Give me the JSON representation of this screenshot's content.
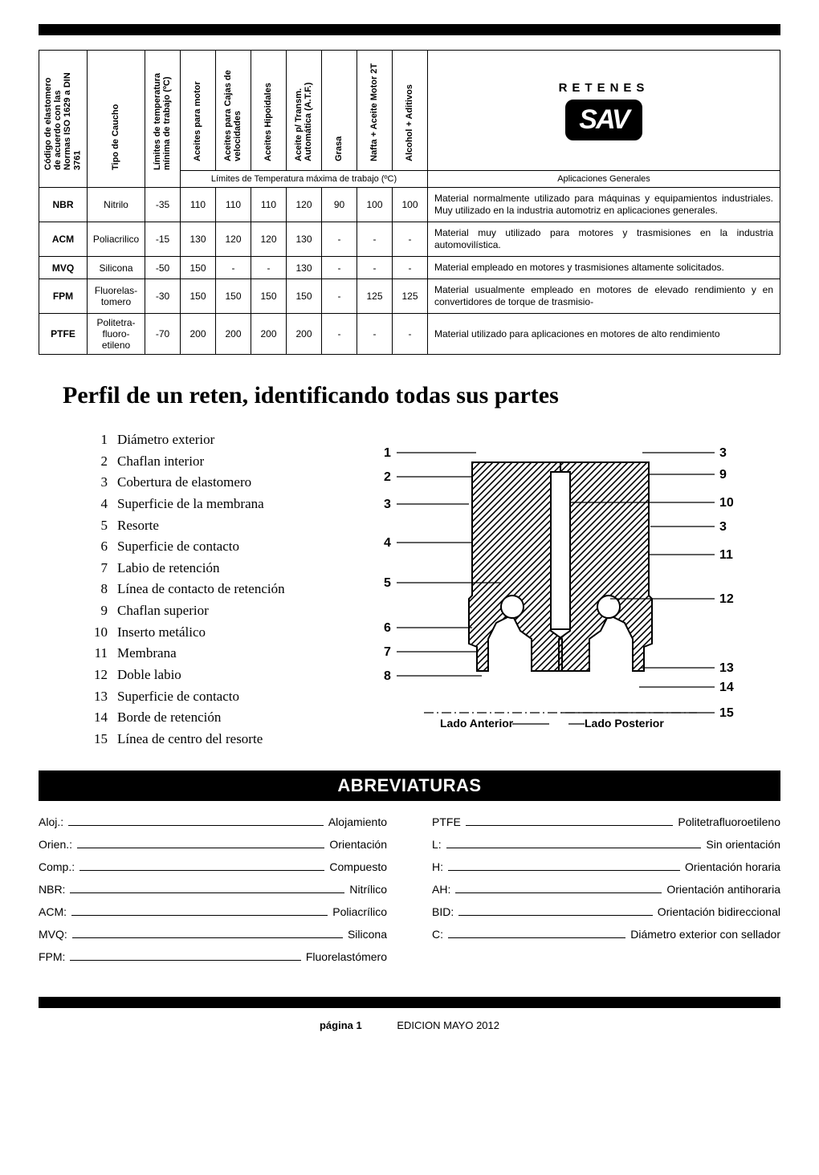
{
  "brand": {
    "title": "RETENES",
    "logo": "SAV"
  },
  "table": {
    "headers": {
      "code": "Código de elastomero de acuerdo con las Normas ISO 1629 a DIN 3761",
      "tipo": "Tipo de Caucho",
      "limites": "Límites de temperatura mínima de trabajo (ºC)",
      "c1": "Aceites para motor",
      "c2": "Aceites para Cajas de velocidades",
      "c3": "Aceites Hipoidales",
      "c4": "Aceite p/ Transm. Automática (A.T.F.)",
      "c5": "Grasa",
      "c6": "Nafta + Aceite Motor 2T",
      "c7": "Alcohol + Aditivos",
      "subspan": "Límites de Temperatura máxima de trabajo (ºC)",
      "apps": "Aplicaciones Generales"
    },
    "rows": [
      {
        "code": "NBR",
        "caucho": "Nitrilo",
        "min": "-35",
        "v": [
          "110",
          "110",
          "110",
          "120",
          "90",
          "100",
          "100"
        ],
        "app": "Material normalmente utilizado para máquinas y equipa­mientos industriales. Muy utilizado en la industria auto­motriz en aplicaciones generales."
      },
      {
        "code": "ACM",
        "caucho": "Poliacrilico",
        "min": "-15",
        "v": [
          "130",
          "120",
          "120",
          "130",
          "-",
          "-",
          "-"
        ],
        "app": "Material muy utilizado para motores y trasmisiones en la industria automovilística."
      },
      {
        "code": "MVQ",
        "caucho": "Silicona",
        "min": "-50",
        "v": [
          "150",
          "-",
          "-",
          "130",
          "-",
          "-",
          "-"
        ],
        "app": "Material empleado en motores y trasmisiones altamente solicitados."
      },
      {
        "code": "FPM",
        "caucho": "Fluorelas-tomero",
        "min": "-30",
        "v": [
          "150",
          "150",
          "150",
          "150",
          "-",
          "125",
          "125"
        ],
        "app": "Material usualmente empleado en motores de elevado rendimiento y en convertidores de torque de trasmisio-"
      },
      {
        "code": "PTFE",
        "caucho": "Politetra-fluoro-etileno",
        "min": "-70",
        "v": [
          "200",
          "200",
          "200",
          "200",
          "-",
          "-",
          "-"
        ],
        "app": "Material utilizado para aplicaciones en motores de alto rendimiento"
      }
    ]
  },
  "perfil": {
    "title": "Perfil de un reten, identificando todas sus partes",
    "items": [
      "Diámetro exterior",
      "Chaflan interior",
      "Cobertura de elastomero",
      "Superficie de la membrana",
      "Resorte",
      "Superficie de contacto",
      "Labio de retención",
      "Línea de contacto de retención",
      "Chaflan superior",
      "Inserto metálico",
      "Membrana",
      "Doble labio",
      "Superficie de contacto",
      "Borde de retención",
      "Línea de centro del resorte"
    ],
    "diagram": {
      "lado_anterior": "Lado Anterior",
      "lado_posterior": "Lado Posterior",
      "left_nums": [
        "1",
        "2",
        "3",
        "4",
        "5",
        "6",
        "7",
        "8"
      ],
      "right_nums": [
        "3",
        "9",
        "10",
        "3",
        "11",
        "12",
        "13",
        "14",
        "15"
      ]
    }
  },
  "abrev": {
    "title": "ABREVIATURAS",
    "left": [
      {
        "k": "Aloj.:",
        "v": "Alojamiento"
      },
      {
        "k": "Orien.:",
        "v": "Orientación"
      },
      {
        "k": "Comp.:",
        "v": "Compuesto"
      },
      {
        "k": "NBR:",
        "v": "Nitrílico"
      },
      {
        "k": "ACM:",
        "v": "Poliacrílico"
      },
      {
        "k": "MVQ:",
        "v": "Silicona"
      },
      {
        "k": "FPM:",
        "v": "Fluorelastómero"
      }
    ],
    "right": [
      {
        "k": "PTFE",
        "v": "Politetrafluoroetileno"
      },
      {
        "k": "L:",
        "v": "Sin orientación"
      },
      {
        "k": "H:",
        "v": "Orientación horaria"
      },
      {
        "k": "AH:",
        "v": "Orientación antihoraria"
      },
      {
        "k": "BID:",
        "v": "Orientación bidireccional"
      },
      {
        "k": "C:",
        "v": "Diámetro exterior con sellador"
      }
    ]
  },
  "footer": {
    "pagina": "página 1",
    "edicion": "EDICION MAYO 2012"
  }
}
